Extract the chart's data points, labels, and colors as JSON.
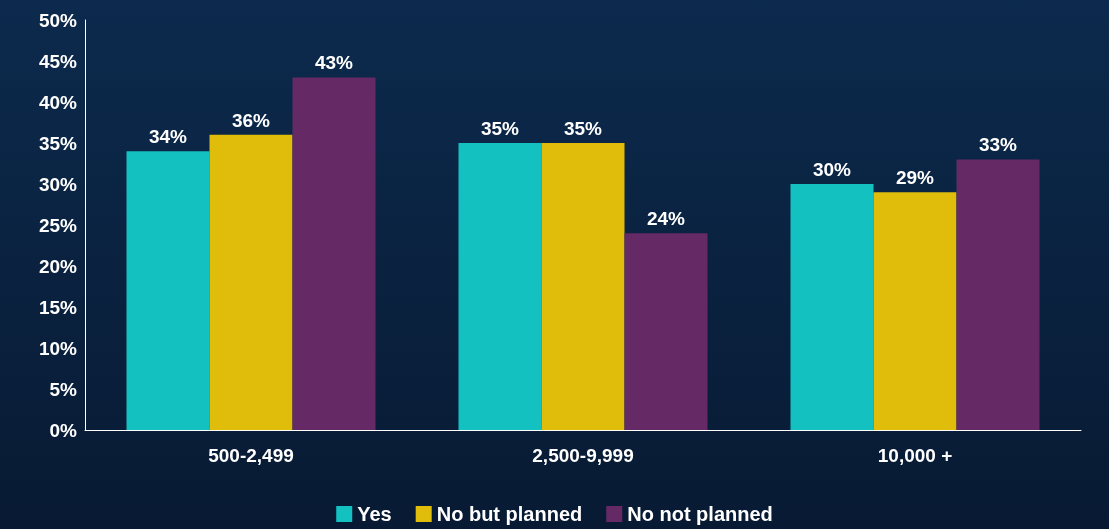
{
  "chart_data": {
    "type": "bar",
    "categories": [
      "500-2,499",
      "2,500-9,999",
      "10,000 +"
    ],
    "series": [
      {
        "name": "Yes",
        "color": "#13c1c1",
        "values": [
          34,
          35,
          30
        ],
        "value_labels": [
          "34%",
          "35%",
          "30%"
        ]
      },
      {
        "name": "No but planned",
        "color": "#e0bd0a",
        "values": [
          36,
          35,
          29
        ],
        "value_labels": [
          "36%",
          "35%",
          "29%"
        ]
      },
      {
        "name": "No not planned",
        "color": "#652a66",
        "values": [
          43,
          24,
          33
        ],
        "value_labels": [
          "43%",
          "24%",
          "33%"
        ]
      }
    ],
    "ylim": [
      0,
      50
    ],
    "yticks": [
      {
        "value": 0,
        "label": "0%"
      },
      {
        "value": 5,
        "label": "5%"
      },
      {
        "value": 10,
        "label": "10%"
      },
      {
        "value": 15,
        "label": "15%"
      },
      {
        "value": 20,
        "label": "20%"
      },
      {
        "value": 25,
        "label": "25%"
      },
      {
        "value": 30,
        "label": "30%"
      },
      {
        "value": 35,
        "label": "35%"
      },
      {
        "value": 40,
        "label": "40%"
      },
      {
        "value": 45,
        "label": "45%"
      },
      {
        "value": 50,
        "label": "50%"
      }
    ],
    "grid": false,
    "legend": "bottom"
  }
}
